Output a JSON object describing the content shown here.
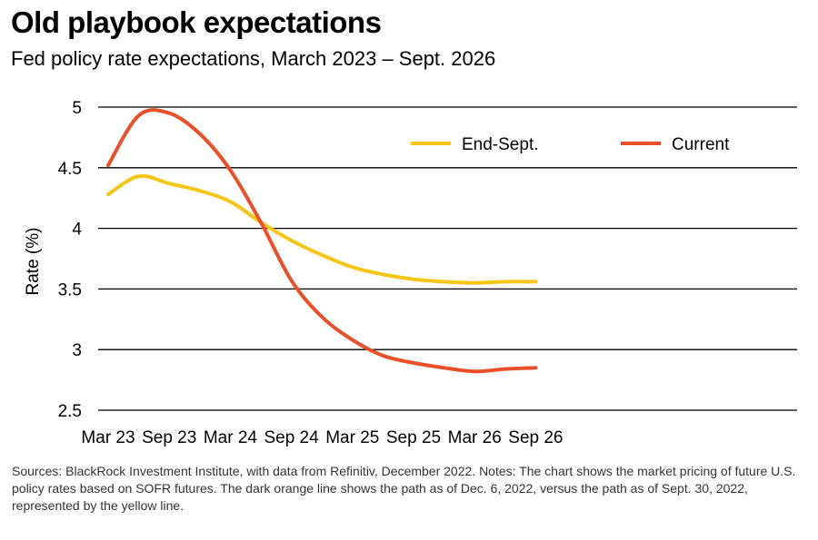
{
  "title": "Old playbook expectations",
  "subtitle": "Fed policy rate expectations, March 2023 – Sept. 2026",
  "notes": "Sources: BlackRock Investment Institute, with data from Refinitiv, December 2022. Notes: The chart shows the market pricing of future U.S. policy rates based on SOFR futures. The dark orange line shows the path as of Dec. 6, 2022, versus the path as of Sept. 30, 2022, represented by the yellow line.",
  "chart_data": {
    "type": "line",
    "title": "Old playbook expectations",
    "subtitle": "Fed policy rate expectations, March 2023 – Sept. 2026",
    "ylabel": "Rate (%)",
    "xlabel": "",
    "ylim": [
      2.5,
      5
    ],
    "yticks": [
      "2.5",
      "3",
      "3.5",
      "4",
      "4.5",
      "5"
    ],
    "categories": [
      "Mar 23",
      "Sep 23",
      "Mar 24",
      "Sep 24",
      "Mar 25",
      "Sep 25",
      "Mar 26",
      "Sep 26"
    ],
    "grid": "horizontal",
    "legend_position": "top-right",
    "x": [
      "Mar 23",
      "Jun 23",
      "Sep 23",
      "Dec 23",
      "Mar 24",
      "Jun 24",
      "Sep 24",
      "Dec 24",
      "Mar 25",
      "Jun 25",
      "Sep 25",
      "Dec 25",
      "Mar 26",
      "Jun 26",
      "Sep 26"
    ],
    "series": [
      {
        "name": "End-Sept.",
        "color": "#F5C518",
        "values": [
          4.28,
          4.43,
          4.37,
          4.31,
          4.22,
          4.05,
          3.9,
          3.78,
          3.68,
          3.62,
          3.58,
          3.56,
          3.55,
          3.56,
          3.56
        ]
      },
      {
        "name": "Current",
        "color": "#E8502A",
        "values": [
          4.52,
          4.93,
          4.95,
          4.78,
          4.48,
          4.05,
          3.57,
          3.27,
          3.08,
          2.95,
          2.89,
          2.85,
          2.82,
          2.84,
          2.85
        ]
      }
    ]
  }
}
